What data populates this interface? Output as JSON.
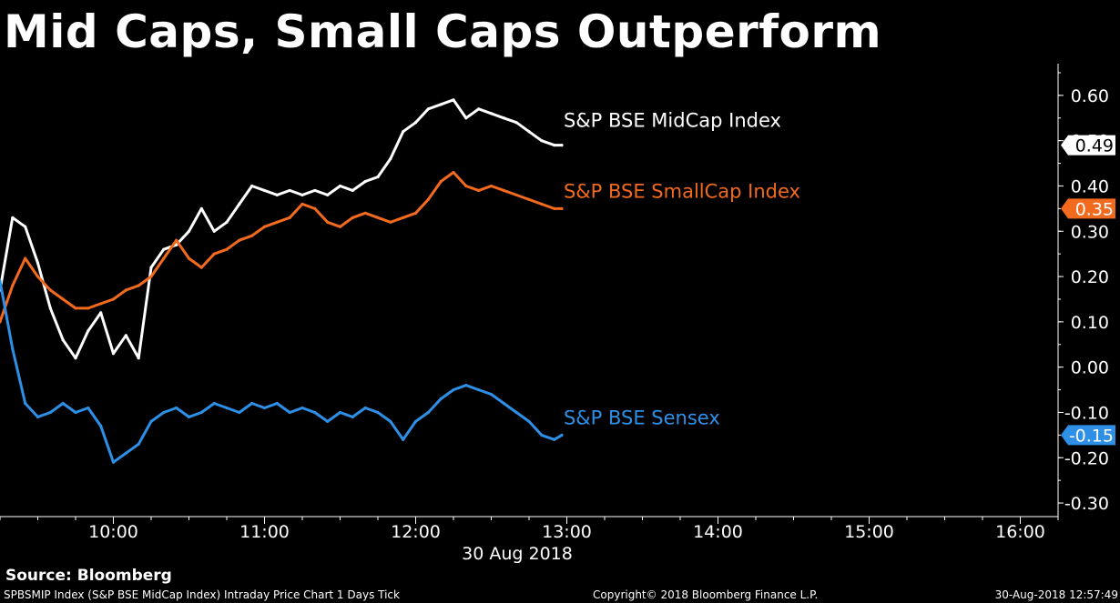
{
  "chart_data": {
    "type": "line",
    "title": "Mid Caps, Small Caps Outperform",
    "xlabel": "30 Aug 2018",
    "ylabel": "",
    "x_ticks": [
      "10:00",
      "11:00",
      "12:00",
      "13:00",
      "14:00",
      "15:00",
      "16:00"
    ],
    "xlim": [
      "09:15",
      "16:15"
    ],
    "y_ticks": [
      "0.60",
      "0.50",
      "0.40",
      "0.30",
      "0.20",
      "0.10",
      "0.00",
      "-0.10",
      "-0.20",
      "-0.30"
    ],
    "ylim": [
      -0.33,
      0.67
    ],
    "series": [
      {
        "name": "S&P BSE MidCap Index",
        "color": "#ffffff",
        "last_value_label": "0.49",
        "x": [
          "09:15",
          "09:20",
          "09:25",
          "09:30",
          "09:35",
          "09:40",
          "09:45",
          "09:50",
          "09:55",
          "10:00",
          "10:05",
          "10:10",
          "10:15",
          "10:20",
          "10:25",
          "10:30",
          "10:35",
          "10:40",
          "10:45",
          "10:50",
          "10:55",
          "11:00",
          "11:05",
          "11:10",
          "11:15",
          "11:20",
          "11:25",
          "11:30",
          "11:35",
          "11:40",
          "11:45",
          "11:50",
          "11:55",
          "12:00",
          "12:05",
          "12:10",
          "12:15",
          "12:20",
          "12:25",
          "12:30",
          "12:35",
          "12:40",
          "12:45",
          "12:50",
          "12:55",
          "12:58"
        ],
        "values": [
          0.17,
          0.33,
          0.31,
          0.23,
          0.13,
          0.06,
          0.02,
          0.08,
          0.12,
          0.03,
          0.07,
          0.02,
          0.22,
          0.26,
          0.27,
          0.3,
          0.35,
          0.3,
          0.32,
          0.36,
          0.4,
          0.39,
          0.38,
          0.39,
          0.38,
          0.39,
          0.38,
          0.4,
          0.39,
          0.41,
          0.42,
          0.46,
          0.52,
          0.54,
          0.57,
          0.58,
          0.59,
          0.55,
          0.57,
          0.56,
          0.55,
          0.54,
          0.52,
          0.5,
          0.49,
          0.49
        ]
      },
      {
        "name": "S&P BSE SmallCap Index",
        "color": "#f26a1e",
        "last_value_label": "0.35",
        "x": [
          "09:15",
          "09:20",
          "09:25",
          "09:30",
          "09:35",
          "09:40",
          "09:45",
          "09:50",
          "09:55",
          "10:00",
          "10:05",
          "10:10",
          "10:15",
          "10:20",
          "10:25",
          "10:30",
          "10:35",
          "10:40",
          "10:45",
          "10:50",
          "10:55",
          "11:00",
          "11:05",
          "11:10",
          "11:15",
          "11:20",
          "11:25",
          "11:30",
          "11:35",
          "11:40",
          "11:45",
          "11:50",
          "11:55",
          "12:00",
          "12:05",
          "12:10",
          "12:15",
          "12:20",
          "12:25",
          "12:30",
          "12:35",
          "12:40",
          "12:45",
          "12:50",
          "12:55",
          "12:58"
        ],
        "values": [
          0.1,
          0.18,
          0.24,
          0.2,
          0.17,
          0.15,
          0.13,
          0.13,
          0.14,
          0.15,
          0.17,
          0.18,
          0.2,
          0.24,
          0.28,
          0.24,
          0.22,
          0.25,
          0.26,
          0.28,
          0.29,
          0.31,
          0.32,
          0.33,
          0.36,
          0.35,
          0.32,
          0.31,
          0.33,
          0.34,
          0.33,
          0.32,
          0.33,
          0.34,
          0.37,
          0.41,
          0.43,
          0.4,
          0.39,
          0.4,
          0.39,
          0.38,
          0.37,
          0.36,
          0.35,
          0.35
        ]
      },
      {
        "name": "S&P BSE Sensex",
        "color": "#2e8fe6",
        "last_value_label": "-0.15",
        "x": [
          "09:15",
          "09:20",
          "09:25",
          "09:30",
          "09:35",
          "09:40",
          "09:45",
          "09:50",
          "09:55",
          "10:00",
          "10:05",
          "10:10",
          "10:15",
          "10:20",
          "10:25",
          "10:30",
          "10:35",
          "10:40",
          "10:45",
          "10:50",
          "10:55",
          "11:00",
          "11:05",
          "11:10",
          "11:15",
          "11:20",
          "11:25",
          "11:30",
          "11:35",
          "11:40",
          "11:45",
          "11:50",
          "11:55",
          "12:00",
          "12:05",
          "12:10",
          "12:15",
          "12:20",
          "12:25",
          "12:30",
          "12:35",
          "12:40",
          "12:45",
          "12:50",
          "12:55",
          "12:58"
        ],
        "values": [
          0.19,
          0.04,
          -0.08,
          -0.11,
          -0.1,
          -0.08,
          -0.1,
          -0.09,
          -0.13,
          -0.21,
          -0.19,
          -0.17,
          -0.12,
          -0.1,
          -0.09,
          -0.11,
          -0.1,
          -0.08,
          -0.09,
          -0.1,
          -0.08,
          -0.09,
          -0.08,
          -0.1,
          -0.09,
          -0.1,
          -0.12,
          -0.1,
          -0.11,
          -0.09,
          -0.1,
          -0.12,
          -0.16,
          -0.12,
          -0.1,
          -0.07,
          -0.05,
          -0.04,
          -0.05,
          -0.06,
          -0.08,
          -0.1,
          -0.12,
          -0.15,
          -0.16,
          -0.15
        ]
      }
    ]
  },
  "source_label": "Source: Bloomberg",
  "footer": {
    "left": "SPBSMIP Index (S&P BSE MidCap Index) Intraday Price Chart 1 Days  Tick",
    "middle": "Copyright© 2018 Bloomberg Finance L.P.",
    "right": "30-Aug-2018 12:57:49"
  }
}
